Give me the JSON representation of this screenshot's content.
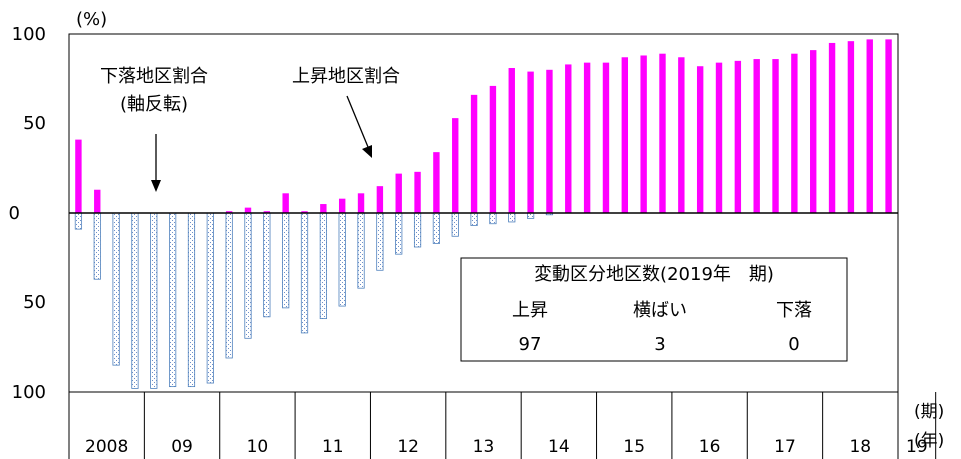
{
  "chart_data": {
    "type": "bar",
    "y_unit_label": "(%)",
    "ylim": [
      -100,
      100
    ],
    "y_ticks": [
      {
        "value": 100,
        "label": "100"
      },
      {
        "value": 50,
        "label": "50"
      },
      {
        "value": 0,
        "label": "0"
      },
      {
        "value": -50,
        "label": "50"
      },
      {
        "value": -100,
        "label": "100"
      }
    ],
    "period_axis_label": "(期)",
    "year_axis_label": "(年)",
    "years": [
      {
        "label": "2008",
        "periods": 4
      },
      {
        "label": "09",
        "periods": 4
      },
      {
        "label": "10",
        "periods": 4
      },
      {
        "label": "11",
        "periods": 4
      },
      {
        "label": "12",
        "periods": 4
      },
      {
        "label": "13",
        "periods": 4
      },
      {
        "label": "14",
        "periods": 4
      },
      {
        "label": "15",
        "periods": 4
      },
      {
        "label": "16",
        "periods": 4
      },
      {
        "label": "17",
        "periods": 4
      },
      {
        "label": "18",
        "periods": 4
      },
      {
        "label": "19",
        "periods": 2
      }
    ],
    "series": [
      {
        "name": "上昇地区割合",
        "color": "#ff00ff",
        "values": [
          41,
          13,
          0,
          0,
          0,
          0,
          0,
          0,
          1,
          3,
          1,
          11,
          1,
          5,
          8,
          11,
          15,
          22,
          23,
          34,
          53,
          66,
          71,
          81,
          79,
          80,
          83,
          84,
          84,
          87,
          88,
          89,
          87,
          82,
          84,
          85,
          86,
          86,
          89,
          91,
          95,
          96,
          97,
          97
        ]
      },
      {
        "name": "下落地区割合(軸反転)",
        "color": "#4f81bd",
        "values": [
          9,
          37,
          85,
          98,
          98,
          97,
          97,
          95,
          81,
          70,
          58,
          53,
          67,
          59,
          52,
          42,
          32,
          23,
          19,
          17,
          13,
          7,
          6,
          5,
          3,
          1,
          0,
          0,
          0,
          0,
          0,
          0,
          0,
          0,
          0,
          0,
          0,
          0,
          0,
          0,
          0,
          0,
          0,
          0
        ]
      }
    ],
    "annotations": {
      "fall": {
        "line1": "下落地区割合",
        "line2": "(軸反転)"
      },
      "rise": {
        "label": "上昇地区割合"
      }
    },
    "inset_table": {
      "title": "変動区分地区数(2019年　期)",
      "headers": [
        "上昇",
        "横ばい",
        "下落"
      ],
      "values": [
        "97",
        "3",
        "0"
      ]
    }
  }
}
